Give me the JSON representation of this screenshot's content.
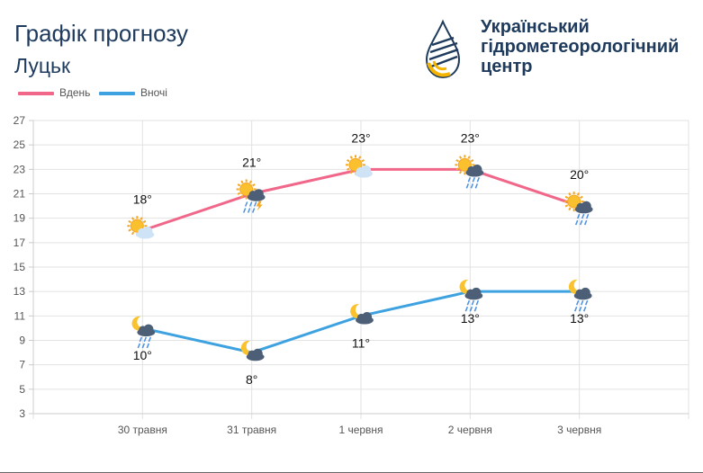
{
  "header": {
    "title": "Графік прогнозу",
    "city": "Луцьк"
  },
  "logo": {
    "lines": [
      "Український",
      "гідрометеорологічний",
      "центр"
    ]
  },
  "legend": {
    "day": "Вдень",
    "night": "Вночі"
  },
  "colors": {
    "day": "#f0678a",
    "night": "#3ea2e0",
    "title": "#1e3a5c"
  },
  "chart_data": {
    "type": "line",
    "categories": [
      "30 травня",
      "31 травня",
      "1 червня",
      "2 червня",
      "3 червня"
    ],
    "ylim": [
      3,
      27
    ],
    "yticks": [
      3,
      5,
      7,
      9,
      11,
      13,
      15,
      17,
      19,
      21,
      23,
      25,
      27
    ],
    "grid": true,
    "legend_position": "top-left",
    "series": [
      {
        "name": "Вдень",
        "values": [
          18,
          21,
          23,
          23,
          20
        ],
        "labels": [
          "18°",
          "21°",
          "23°",
          "23°",
          "20°"
        ],
        "icons": [
          "sun-cloud-icon",
          "sun-thunder-rain-icon",
          "sun-cloud-icon",
          "sun-rain-icon",
          "sun-rain-icon"
        ]
      },
      {
        "name": "Вночі",
        "values": [
          10,
          8,
          11,
          13,
          13
        ],
        "labels": [
          "10°",
          "8°",
          "11°",
          "13°",
          "13°"
        ],
        "icons": [
          "moon-rain-icon",
          "moon-cloud-icon",
          "moon-cloud-icon",
          "moon-rain-icon",
          "moon-rain-icon"
        ]
      }
    ]
  }
}
